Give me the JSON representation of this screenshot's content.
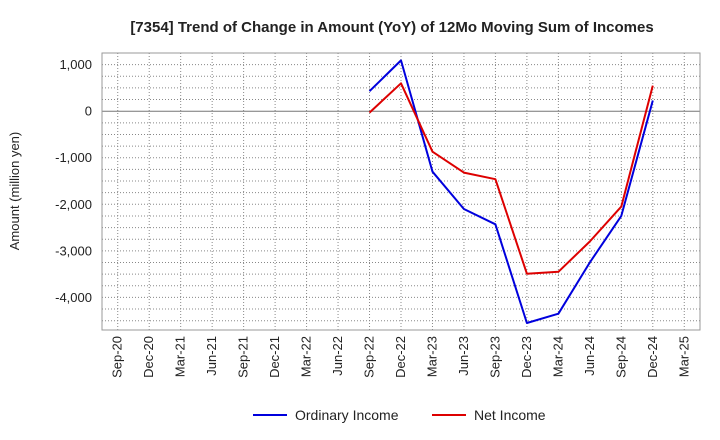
{
  "chart_data": {
    "type": "line",
    "title": "[7354]  Trend of Change in Amount (YoY) of 12Mo Moving Sum of Incomes",
    "xlabel": "",
    "ylabel": "Amount (million yen)",
    "categories": [
      "Sep-20",
      "Dec-20",
      "Mar-21",
      "Jun-21",
      "Sep-21",
      "Dec-21",
      "Mar-22",
      "Jun-22",
      "Sep-22",
      "Dec-22",
      "Mar-23",
      "Jun-23",
      "Sep-23",
      "Dec-23",
      "Mar-24",
      "Jun-24",
      "Sep-24",
      "Dec-24",
      "Mar-25"
    ],
    "ylim": [
      -4700,
      1250
    ],
    "yticks": [
      1000,
      0,
      -1000,
      -2000,
      -3000,
      -4000
    ],
    "ytick_labels": [
      "1,000",
      "0",
      "-1,000",
      "-2,000",
      "-3,000",
      "-4,000"
    ],
    "grid": true,
    "legend_position": "bottom",
    "series": [
      {
        "name": "Ordinary Income",
        "color": "#0000dd",
        "values": [
          null,
          null,
          null,
          null,
          null,
          null,
          null,
          null,
          430,
          1090,
          -1300,
          -2100,
          -2430,
          -4550,
          -4350,
          -3250,
          -2250,
          230,
          null
        ]
      },
      {
        "name": "Net Income",
        "color": "#dd0000",
        "values": [
          null,
          null,
          null,
          null,
          null,
          null,
          null,
          null,
          -30,
          600,
          -870,
          -1320,
          -1460,
          -3490,
          -3450,
          -2800,
          -2050,
          550,
          null
        ]
      }
    ]
  }
}
